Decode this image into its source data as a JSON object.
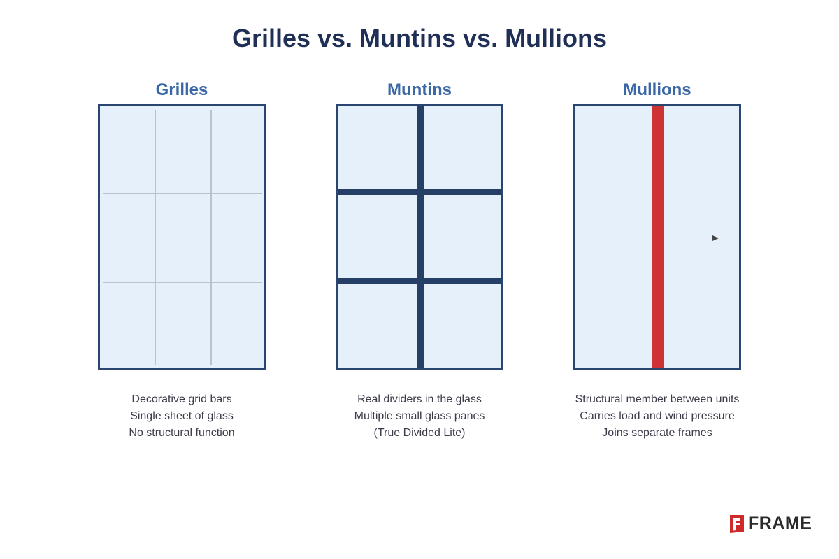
{
  "title": "Grilles vs. Muntins vs. Mullions",
  "panels": [
    {
      "heading": "Grilles",
      "caption": [
        "Decorative grid bars",
        "Single sheet of glass",
        "No structural function"
      ]
    },
    {
      "heading": "Muntins",
      "caption": [
        "Real dividers in the glass",
        "Multiple small glass panes",
        "(True Divided Lite)"
      ]
    },
    {
      "heading": "Mullions",
      "caption": [
        "Structural member between units",
        "Carries load and wind pressure",
        "Joins separate frames"
      ]
    }
  ],
  "colors": {
    "title": "#1f2f55",
    "heading": "#3a67a6",
    "frame": "#2a4670",
    "glass": "#e6f0fa",
    "grille": "#b9c3cd",
    "muntin": "#253f66",
    "mullion": "#cf3232"
  },
  "logo": {
    "text": "FRAME",
    "icon": "frame-logo-icon"
  }
}
